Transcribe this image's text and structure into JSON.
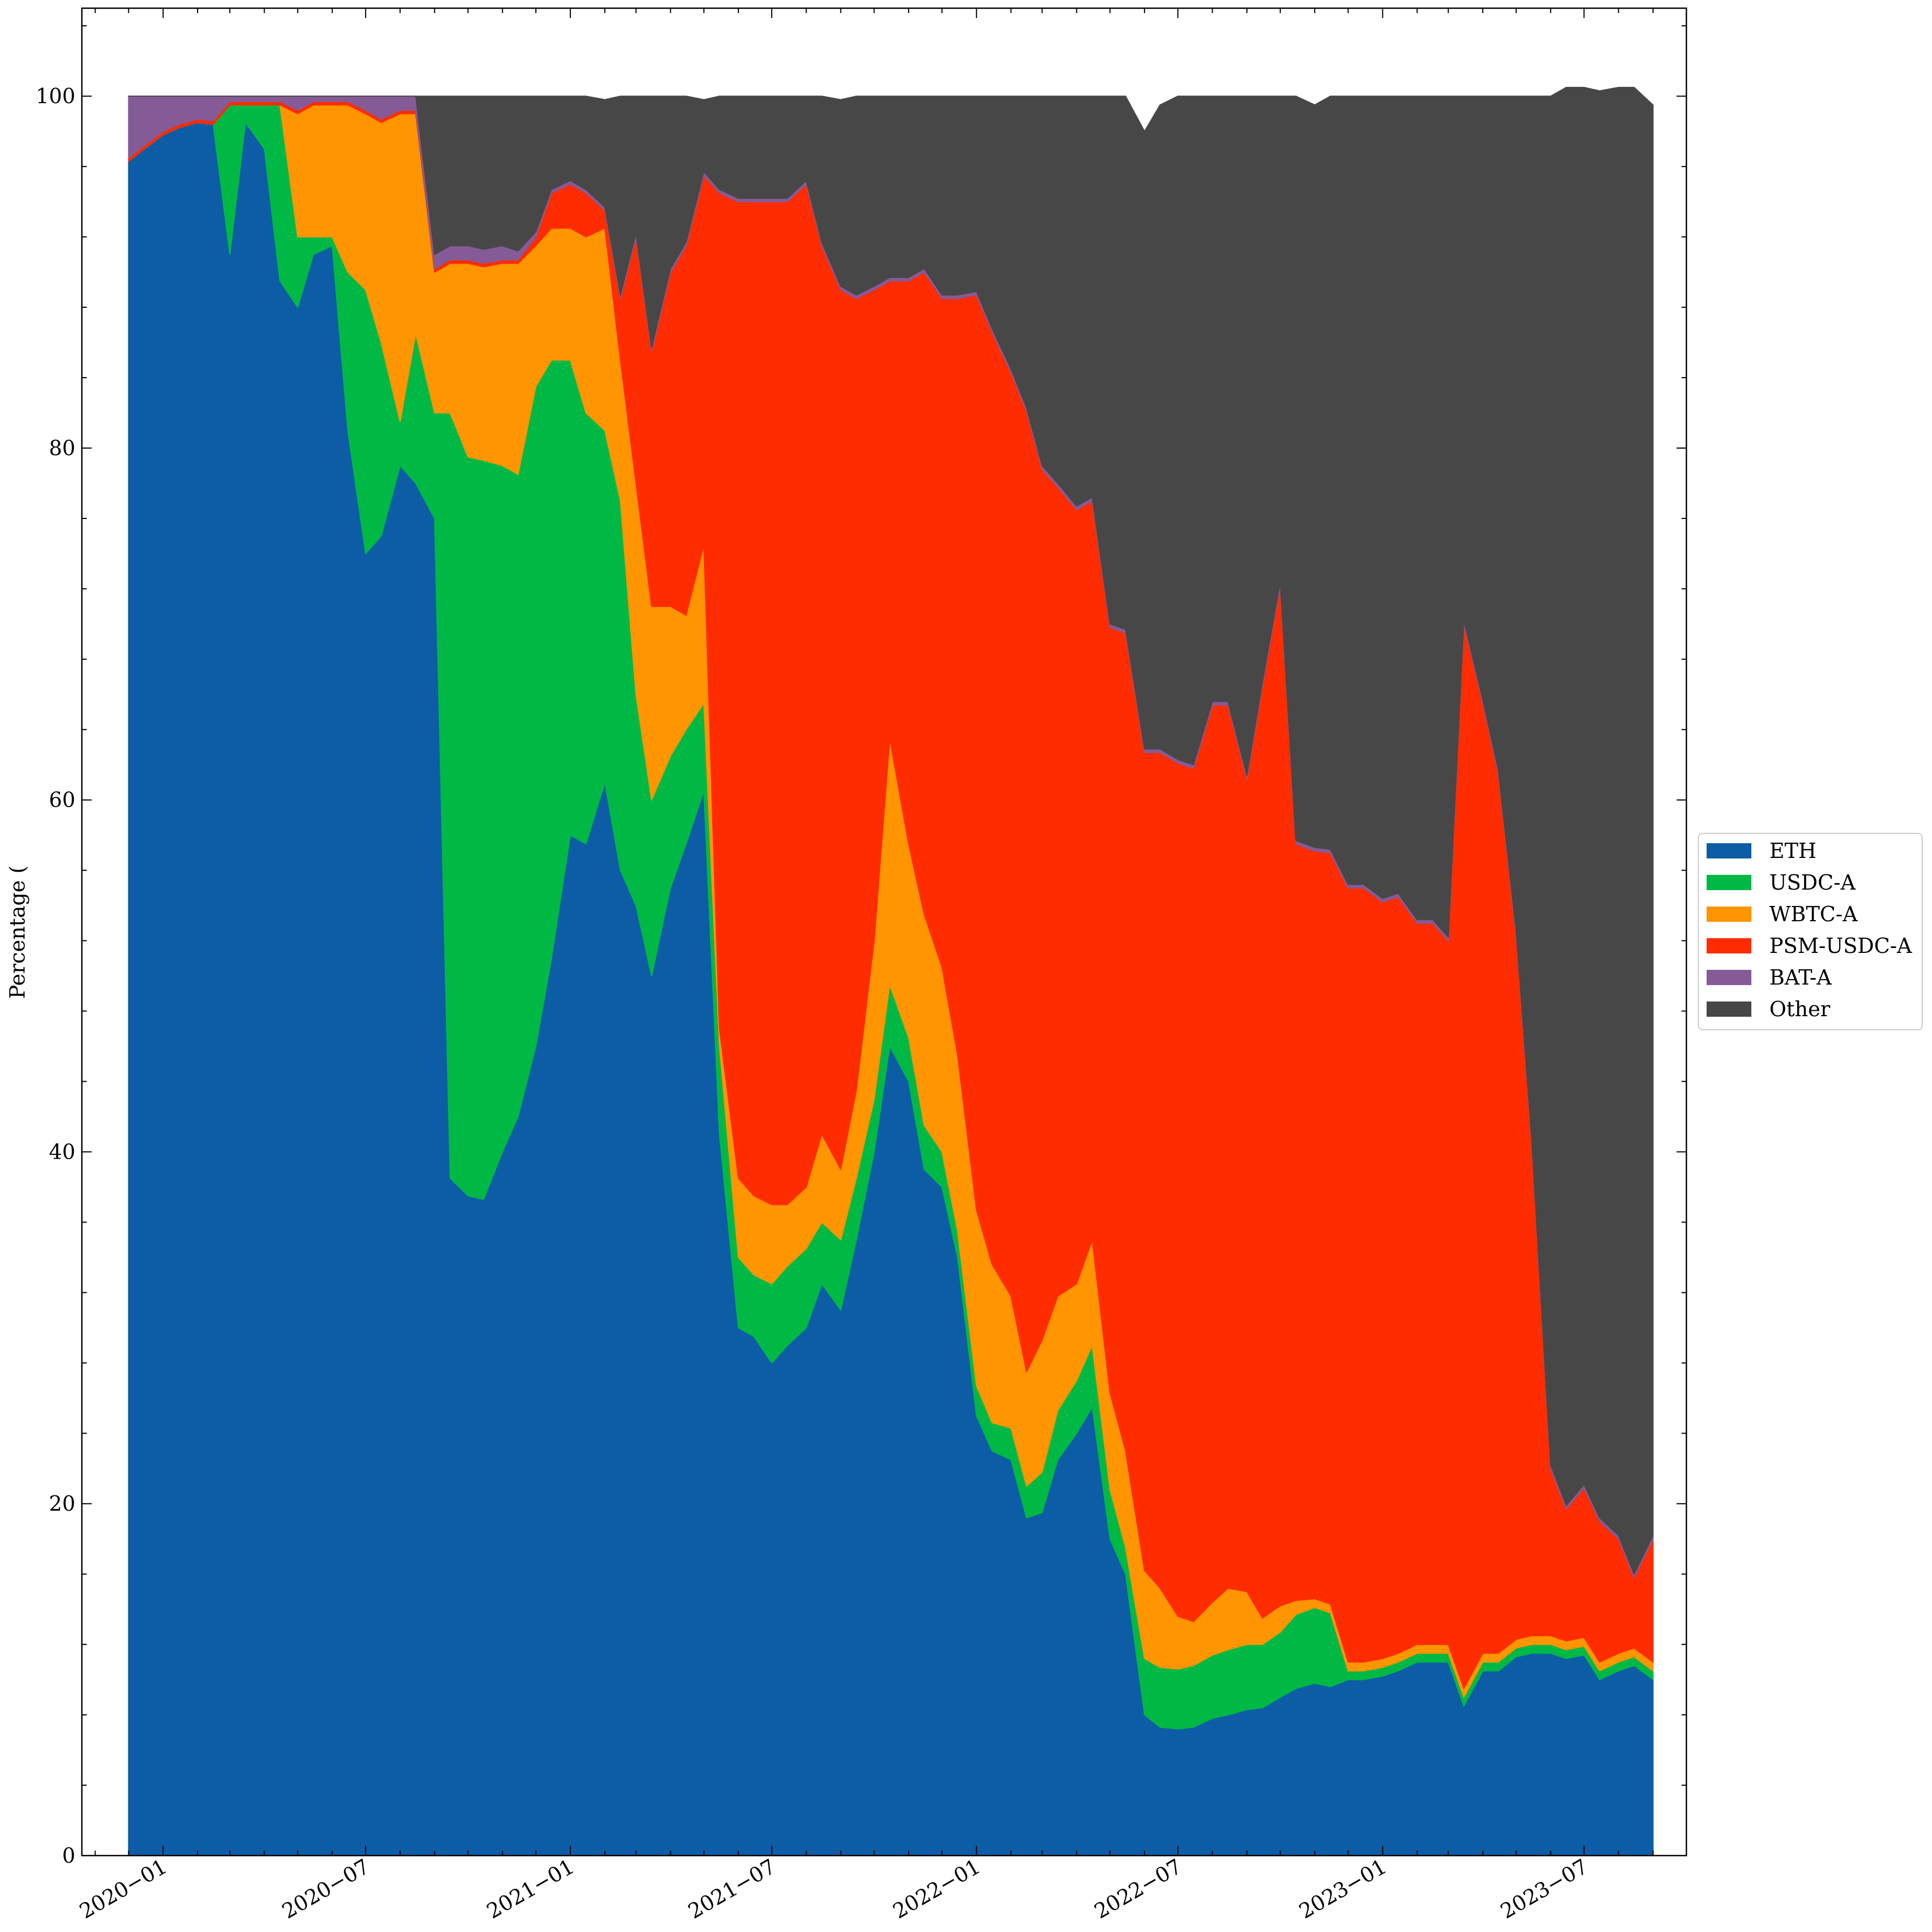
{
  "chart_data": {
    "type": "area",
    "stacked": true,
    "xlabel": "",
    "ylabel": "Percentage (",
    "ylim": [
      0,
      105
    ],
    "xlim": [
      "2019-10-20",
      "2023-10-01"
    ],
    "yticks": [
      0,
      20,
      40,
      60,
      80,
      100
    ],
    "xticks": [
      "2020-01",
      "2020-07",
      "2021-01",
      "2021-07",
      "2022-01",
      "2022-07",
      "2023-01",
      "2023-07"
    ],
    "grid": false,
    "legend_position": "center-right-outside",
    "x": [
      "2019-12-01",
      "2019-12-15",
      "2020-01-01",
      "2020-01-15",
      "2020-02-01",
      "2020-02-15",
      "2020-03-01",
      "2020-03-15",
      "2020-04-01",
      "2020-04-15",
      "2020-05-01",
      "2020-05-15",
      "2020-06-01",
      "2020-06-15",
      "2020-07-01",
      "2020-07-15",
      "2020-08-01",
      "2020-08-15",
      "2020-09-01",
      "2020-09-15",
      "2020-10-01",
      "2020-10-15",
      "2020-11-01",
      "2020-11-15",
      "2020-12-01",
      "2020-12-15",
      "2021-01-01",
      "2021-01-15",
      "2021-02-01",
      "2021-02-15",
      "2021-03-01",
      "2021-03-15",
      "2021-04-01",
      "2021-04-15",
      "2021-05-01",
      "2021-05-15",
      "2021-06-01",
      "2021-06-15",
      "2021-07-01",
      "2021-07-15",
      "2021-08-01",
      "2021-08-15",
      "2021-09-01",
      "2021-09-15",
      "2021-10-01",
      "2021-10-15",
      "2021-11-01",
      "2021-11-15",
      "2021-12-01",
      "2021-12-15",
      "2022-01-01",
      "2022-01-15",
      "2022-02-01",
      "2022-02-15",
      "2022-03-01",
      "2022-03-15",
      "2022-04-01",
      "2022-04-15",
      "2022-05-01",
      "2022-05-15",
      "2022-06-01",
      "2022-06-15",
      "2022-07-01",
      "2022-07-15",
      "2022-08-01",
      "2022-08-15",
      "2022-09-01",
      "2022-09-15",
      "2022-10-01",
      "2022-10-15",
      "2022-11-01",
      "2022-11-15",
      "2022-12-01",
      "2022-12-15",
      "2023-01-01",
      "2023-01-15",
      "2023-02-01",
      "2023-02-15",
      "2023-03-01",
      "2023-03-15",
      "2023-04-01",
      "2023-04-15",
      "2023-05-01",
      "2023-05-15",
      "2023-06-01",
      "2023-06-15",
      "2023-07-01",
      "2023-07-15",
      "2023-08-01",
      "2023-08-15",
      "2023-09-01"
    ],
    "series": [
      {
        "name": "ETH",
        "color": "#0C5DA5",
        "values": [
          96.3,
          97.0,
          97.8,
          98.2,
          98.5,
          98.4,
          91.0,
          98.5,
          97.0,
          89.5,
          88.0,
          91.0,
          91.5,
          81.0,
          74.0,
          75.0,
          79.0,
          78.0,
          76.0,
          38.5,
          37.5,
          37.3,
          40.0,
          42.0,
          46.0,
          51.0,
          58.0,
          57.5,
          61.0,
          56.0,
          54.0,
          50.0,
          55.0,
          57.5,
          60.5,
          41.0,
          30.0,
          29.5,
          28.0,
          29.0,
          30.0,
          32.5,
          31.0,
          35.0,
          40.0,
          46.0,
          44.0,
          39.0,
          38.0,
          34.0,
          25.0,
          23.0,
          22.5,
          19.2,
          19.5,
          22.5,
          24.0,
          25.5,
          18.0,
          16.0,
          8.0,
          7.3,
          7.2,
          7.3,
          7.8,
          8.0,
          8.3,
          8.4,
          9.0,
          9.5,
          9.8,
          9.6,
          10.0,
          10.0,
          10.2,
          10.5,
          11.0,
          11.0,
          11.0,
          8.5,
          10.5,
          10.5,
          11.3,
          11.5,
          11.5,
          11.2,
          11.4,
          10.0,
          10.5,
          10.8,
          10.0
        ]
      },
      {
        "name": "USDC-A",
        "color": "#00B945",
        "values": [
          0,
          0,
          0,
          0,
          0,
          0,
          8.5,
          1.0,
          2.5,
          10.0,
          4.0,
          1.0,
          0.5,
          9.0,
          15.0,
          11.0,
          2.5,
          8.5,
          6.0,
          43.5,
          42.0,
          42.0,
          39.0,
          36.5,
          37.5,
          34.0,
          27.0,
          24.5,
          20.0,
          21.0,
          12.0,
          10.0,
          7.5,
          6.5,
          5.0,
          5.0,
          4.0,
          3.5,
          4.5,
          4.5,
          4.5,
          3.5,
          4.0,
          3.5,
          3.0,
          3.5,
          2.5,
          2.5,
          2.0,
          1.5,
          1.7,
          1.6,
          1.8,
          1.8,
          2.3,
          2.8,
          3.0,
          3.5,
          2.8,
          1.5,
          3.2,
          3.4,
          3.4,
          3.5,
          3.6,
          3.7,
          3.7,
          3.6,
          3.7,
          4.2,
          4.3,
          4.2,
          0.5,
          0.5,
          0.5,
          0.5,
          0.5,
          0.5,
          0.5,
          0.5,
          0.5,
          0.5,
          0.5,
          0.5,
          0.5,
          0.5,
          0.5,
          0.5,
          0.5,
          0.5,
          0.5
        ]
      },
      {
        "name": "WBTC-A",
        "color": "#FF9500",
        "values": [
          0,
          0,
          0,
          0,
          0,
          0,
          0,
          0,
          0,
          0,
          7.0,
          7.5,
          7.5,
          9.5,
          10.0,
          12.5,
          17.5,
          12.5,
          8.0,
          8.5,
          11.0,
          11.0,
          11.5,
          12.0,
          8.0,
          7.5,
          7.5,
          10.0,
          11.5,
          8.0,
          12.0,
          11.0,
          8.5,
          6.5,
          9.0,
          1.0,
          4.5,
          4.5,
          4.5,
          3.5,
          3.5,
          5.0,
          4.0,
          5.0,
          9.0,
          14.0,
          11.0,
          12.0,
          10.5,
          10.0,
          10.0,
          9.0,
          7.5,
          6.5,
          7.5,
          6.5,
          5.5,
          6.0,
          5.5,
          5.5,
          5.0,
          4.5,
          3.0,
          2.5,
          3.0,
          3.5,
          3.0,
          1.5,
          1.5,
          0.8,
          0.5,
          0.5,
          0.5,
          0.5,
          0.5,
          0.5,
          0.5,
          0.5,
          0.5,
          0.5,
          0.5,
          0.5,
          0.5,
          0.5,
          0.5,
          0.5,
          0.5,
          0.5,
          0.5,
          0.5,
          0.5
        ]
      },
      {
        "name": "PSM-USDC-A",
        "color": "#FF2C00",
        "values": [
          0.2,
          0.2,
          0.2,
          0.2,
          0.2,
          0.2,
          0.2,
          0.2,
          0.2,
          0.2,
          0.2,
          0.2,
          0.2,
          0.2,
          0.2,
          0.2,
          0.2,
          0.2,
          0.2,
          0.2,
          0.2,
          0.2,
          0.2,
          0.2,
          0.5,
          2.0,
          2.5,
          2.5,
          1.0,
          3.5,
          14.0,
          14.5,
          19.0,
          21.0,
          21.0,
          47.5,
          55.5,
          56.5,
          57.0,
          57.0,
          57.0,
          50.5,
          50.0,
          45.0,
          37.0,
          26.0,
          32.0,
          36.5,
          38.0,
          43.0,
          52.0,
          53.0,
          52.5,
          54.6,
          49.5,
          46.0,
          44.0,
          42.0,
          43.5,
          46.5,
          46.5,
          47.5,
          48.5,
          48.5,
          51.0,
          50.2,
          46.2,
          53.0,
          58.0,
          43.0,
          42.5,
          42.7,
          44.0,
          44.0,
          43.0,
          43.0,
          41.0,
          41.0,
          40.0,
          60.5,
          54.0,
          50.0,
          40.0,
          28.0,
          9.5,
          7.5,
          8.5,
          8.0,
          6.5,
          4.0,
          7.0
        ]
      },
      {
        "name": "BAT-A",
        "color": "#845B97",
        "values": [
          3.5,
          2.8,
          2.0,
          1.6,
          1.3,
          1.4,
          0.3,
          0.3,
          0.3,
          0.3,
          0.8,
          0.3,
          0.3,
          0.3,
          0.8,
          1.3,
          0.8,
          0.8,
          0.8,
          0.8,
          0.8,
          0.8,
          0.8,
          0.5,
          0.3,
          0.2,
          0.2,
          0.2,
          0.2,
          0.2,
          0.2,
          0.2,
          0.2,
          0.2,
          0.2,
          0.2,
          0.2,
          0.2,
          0.2,
          0.2,
          0.2,
          0.2,
          0.2,
          0.2,
          0.2,
          0.2,
          0.2,
          0.2,
          0.2,
          0.2,
          0.2,
          0.2,
          0.2,
          0.2,
          0.2,
          0.2,
          0.2,
          0.2,
          0.2,
          0.2,
          0.2,
          0.2,
          0.2,
          0.2,
          0.2,
          0.2,
          0.2,
          0.2,
          0.2,
          0.2,
          0.2,
          0.2,
          0.2,
          0.2,
          0.2,
          0.2,
          0.2,
          0.2,
          0.2,
          0.2,
          0.2,
          0.2,
          0.2,
          0.2,
          0.2,
          0.2,
          0.2,
          0.2,
          0.2,
          0.2,
          0.2
        ]
      },
      {
        "name": "Other",
        "color": "#474747",
        "values": [
          0,
          0,
          0,
          0,
          0,
          0,
          0,
          0,
          0,
          0,
          0,
          0,
          0,
          0,
          0,
          0,
          0,
          0,
          9.0,
          8.5,
          8.5,
          8.7,
          8.5,
          8.8,
          7.7,
          5.3,
          4.8,
          5.3,
          6.1,
          11.3,
          7.8,
          14.3,
          9.8,
          8.3,
          4.1,
          5.3,
          5.8,
          5.8,
          5.8,
          5.8,
          4.8,
          8.3,
          10.6,
          11.3,
          10.8,
          10.3,
          10.3,
          9.8,
          11.3,
          11.3,
          11.1,
          13.2,
          15.5,
          17.7,
          21.0,
          22.0,
          23.3,
          22.8,
          30.0,
          30.3,
          35.1,
          36.6,
          37.7,
          38.0,
          34.4,
          34.4,
          38.6,
          33.3,
          27.6,
          42.3,
          42.2,
          42.8,
          44.8,
          44.8,
          45.6,
          45.3,
          46.8,
          46.8,
          47.8,
          29.8,
          34.3,
          38.3,
          47.5,
          59.3,
          77.8,
          80.6,
          79.4,
          81.1,
          82.3,
          84.5,
          81.3
        ]
      }
    ]
  },
  "axes": {
    "ylabel": "Percentage (",
    "ytick_labels": [
      "0",
      "20",
      "40",
      "60",
      "80",
      "100"
    ],
    "xtick_labels": [
      "2020−01",
      "2020−07",
      "2021−01",
      "2021−07",
      "2022−01",
      "2022−07",
      "2023−01",
      "2023−07"
    ]
  },
  "legend": {
    "position": "right",
    "entries": [
      {
        "label": "ETH",
        "color": "#0C5DA5"
      },
      {
        "label": "USDC-A",
        "color": "#00B945"
      },
      {
        "label": "WBTC-A",
        "color": "#FF9500"
      },
      {
        "label": "PSM-USDC-A",
        "color": "#FF2C00"
      },
      {
        "label": "BAT-A",
        "color": "#845B97"
      },
      {
        "label": "Other",
        "color": "#474747"
      }
    ]
  }
}
